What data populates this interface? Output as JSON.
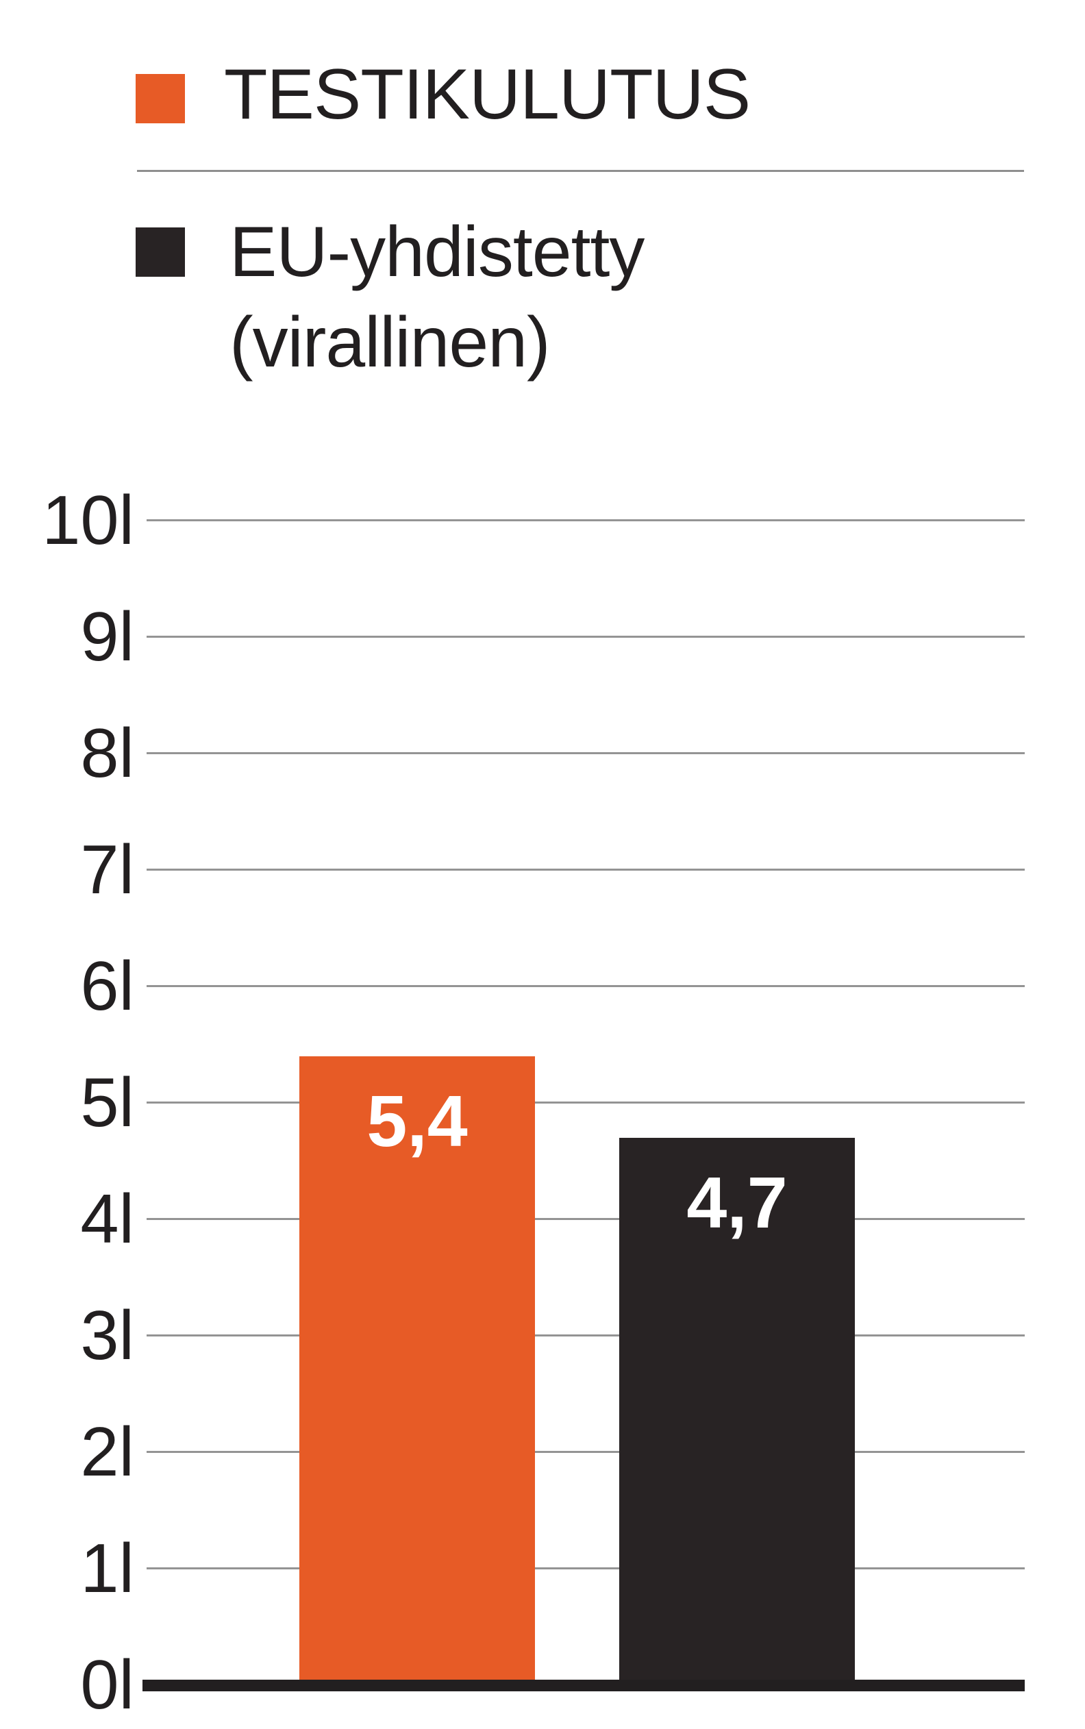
{
  "legend": {
    "items": [
      {
        "label": "TESTIKULUTUS",
        "color": "#e75b26"
      },
      {
        "label_line1": "EU-yhdistetty",
        "label_line2": "(virallinen)",
        "color": "#282324"
      }
    ]
  },
  "chart_data": {
    "type": "bar",
    "categories": [
      "TESTIKULUTUS",
      "EU-yhdistetty (virallinen)"
    ],
    "series": [
      {
        "name": "TESTIKULUTUS",
        "value": 5.4,
        "value_label": "5,4",
        "color": "#e75b26"
      },
      {
        "name": "EU-yhdistetty (virallinen)",
        "value": 4.7,
        "value_label": "4,7",
        "color": "#282324"
      }
    ],
    "title": "",
    "xlabel": "",
    "ylabel": "",
    "y_ticks": [
      "10l",
      "9l",
      "8l",
      "7l",
      "6l",
      "5l",
      "4l",
      "3l",
      "2l",
      "1l",
      "0l"
    ],
    "y_unit": "l",
    "ylim": [
      0,
      10
    ],
    "grid": true,
    "gridline_color": "#949494",
    "axis_color": "#221f20",
    "legend_position": "top-left",
    "value_label_color": "#ffffff"
  }
}
